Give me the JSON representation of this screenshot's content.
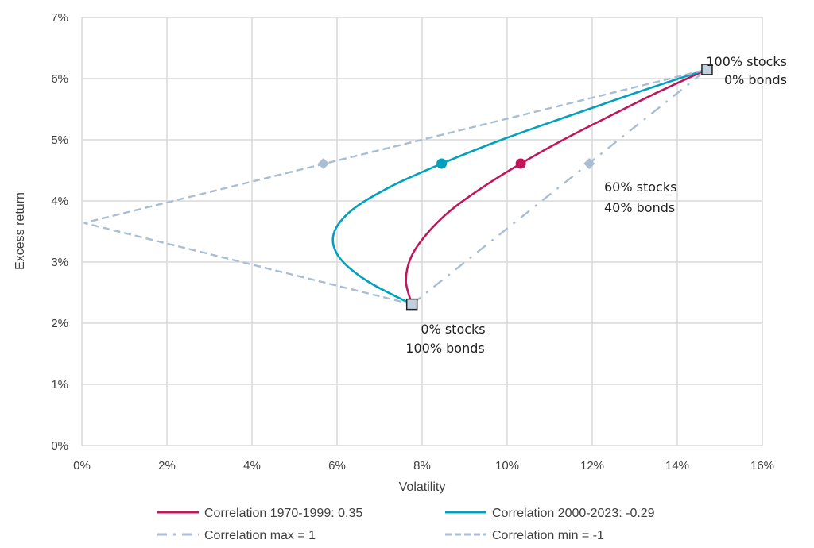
{
  "chart_data": {
    "type": "line",
    "xlabel": "Volatility",
    "ylabel": "Excess return",
    "xlim": [
      0,
      16
    ],
    "ylim": [
      0,
      7
    ],
    "xticks": [
      "0%",
      "2%",
      "4%",
      "6%",
      "8%",
      "10%",
      "12%",
      "14%",
      "16%"
    ],
    "yticks": [
      "0%",
      "1%",
      "2%",
      "3%",
      "4%",
      "5%",
      "6%",
      "7%"
    ],
    "grid": true,
    "legend_position": "bottom",
    "series": [
      {
        "name": "Correlation 1970-1999: 0.35",
        "color": "#C0175C",
        "style": "solid",
        "x": [
          7.76,
          7.62,
          7.74,
          8.11,
          8.68,
          9.44,
          10.32,
          11.32,
          12.39,
          13.52,
          14.7
        ],
        "y": [
          2.31,
          2.69,
          3.08,
          3.46,
          3.85,
          4.23,
          4.61,
          5.0,
          5.38,
          5.77,
          6.15
        ],
        "marker_60_40": [
          10.32,
          4.61
        ]
      },
      {
        "name": "Correlation 2000-2023: -0.29",
        "color": "#00A0BE",
        "style": "solid",
        "x": [
          7.76,
          6.71,
          6.05,
          5.92,
          6.35,
          7.25,
          8.46,
          9.87,
          11.41,
          13.03,
          14.7
        ],
        "y": [
          2.31,
          2.69,
          3.08,
          3.46,
          3.85,
          4.23,
          4.61,
          5.0,
          5.38,
          5.77,
          6.15
        ],
        "marker_60_40": [
          8.46,
          4.61
        ]
      },
      {
        "name": "Correlation max = 1",
        "color": "#A9BDD4",
        "style": "dashdot",
        "x": [
          7.76,
          14.7
        ],
        "y": [
          2.31,
          6.15
        ],
        "marker_60_40": [
          11.93,
          4.61
        ]
      },
      {
        "name": "Correlation min = -1",
        "color": "#A9BDD4",
        "style": "dash",
        "x": [
          7.76,
          0.05,
          14.7
        ],
        "y": [
          2.31,
          3.64,
          6.15
        ],
        "marker_60_40": [
          5.68,
          4.61
        ]
      }
    ],
    "endpoints": [
      {
        "x": 14.7,
        "y": 6.15,
        "label1": "100% stocks",
        "label2": "0% bonds"
      },
      {
        "x": 7.76,
        "y": 2.31,
        "label1": "0% stocks",
        "label2": "100% bonds"
      }
    ],
    "annotation_60_40": {
      "label1": "60% stocks",
      "label2": "40% bonds"
    }
  }
}
